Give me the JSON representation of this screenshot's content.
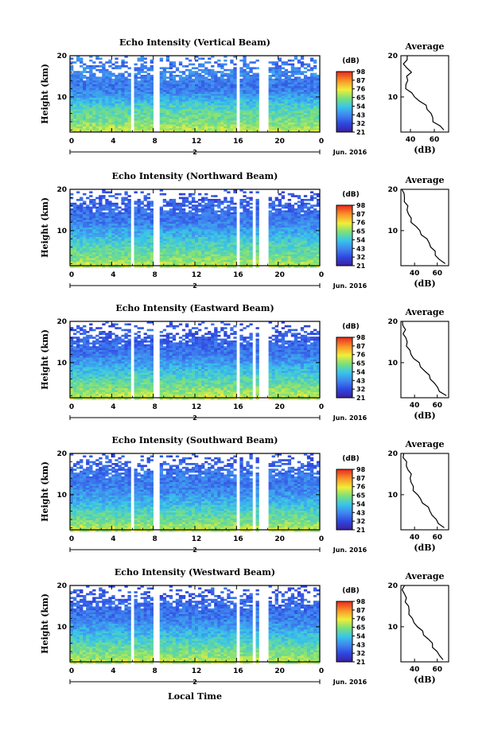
{
  "figure": {
    "xlabel_bottom": "Local Time",
    "date_label": "Jun. 2016",
    "day_marker": "2"
  },
  "chart_data": [
    {
      "type": "heatmap",
      "title": "Echo Intensity (Vertical Beam)",
      "ylabel": "Height (km)",
      "x_ticks": [
        "0",
        "4",
        "8",
        "12",
        "16",
        "20",
        "0"
      ],
      "y_ticks": [
        "10",
        "20"
      ],
      "xlim": [
        0,
        24
      ],
      "ylim": [
        1.5,
        20
      ],
      "colorbar": {
        "unit": "(dB)",
        "ticks": [
          "21",
          "32",
          "43",
          "54",
          "65",
          "76",
          "87",
          "98"
        ]
      },
      "gaps_hours": [
        [
          5.8,
          6.1
        ],
        [
          7.9,
          8.5
        ],
        [
          16.0,
          16.2
        ],
        [
          18.3,
          19.2
        ]
      ],
      "average_profile": {
        "title": "Average",
        "xlabel": "(dB)",
        "x_ticks": [
          "40",
          "60"
        ],
        "y_ticks": [
          "10",
          "20"
        ],
        "xlim": [
          32,
          72
        ],
        "ylim": [
          1.5,
          20
        ],
        "height": [
          2,
          3,
          4,
          5,
          6,
          7,
          8,
          9,
          10,
          11,
          12,
          13,
          14,
          15,
          16,
          17,
          18,
          19,
          20
        ],
        "db": [
          68,
          64,
          60,
          58,
          57,
          55,
          52,
          48,
          44,
          40,
          37,
          36,
          37,
          38,
          40,
          37,
          35,
          36,
          38
        ]
      }
    },
    {
      "type": "heatmap",
      "title": "Echo Intensity (Northward Beam)",
      "ylabel": "Height (km)",
      "x_ticks": [
        "0",
        "4",
        "8",
        "12",
        "16",
        "20",
        "0"
      ],
      "y_ticks": [
        "10",
        "20"
      ],
      "xlim": [
        0,
        24
      ],
      "ylim": [
        1.5,
        20
      ],
      "colorbar": {
        "unit": "(dB)",
        "ticks": [
          "21",
          "32",
          "43",
          "54",
          "65",
          "76",
          "87",
          "98"
        ]
      },
      "gaps_hours": [
        [
          5.8,
          6.1
        ],
        [
          7.9,
          8.5
        ],
        [
          16.0,
          16.2
        ],
        [
          17.6,
          17.8
        ],
        [
          18.3,
          19.2
        ]
      ],
      "average_profile": {
        "title": "Average",
        "xlabel": "(dB)",
        "x_ticks": [
          "40",
          "60"
        ],
        "y_ticks": [
          "10",
          "20"
        ],
        "xlim": [
          28,
          70
        ],
        "ylim": [
          1.5,
          20
        ],
        "height": [
          2,
          3,
          4,
          5,
          6,
          7,
          8,
          9,
          10,
          11,
          12,
          13,
          14,
          15,
          16,
          17,
          18,
          19,
          20
        ],
        "db": [
          66,
          62,
          59,
          57,
          55,
          53,
          50,
          47,
          44,
          41,
          38,
          36,
          35,
          34,
          33,
          32,
          31,
          30,
          30
        ]
      }
    },
    {
      "type": "heatmap",
      "title": "Echo Intensity (Eastward Beam)",
      "ylabel": "Height (km)",
      "x_ticks": [
        "0",
        "4",
        "8",
        "12",
        "16",
        "20",
        "0"
      ],
      "y_ticks": [
        "10",
        "20"
      ],
      "xlim": [
        0,
        24
      ],
      "ylim": [
        1.5,
        20
      ],
      "colorbar": {
        "unit": "(dB)",
        "ticks": [
          "21",
          "32",
          "43",
          "54",
          "65",
          "76",
          "87",
          "98"
        ]
      },
      "gaps_hours": [
        [
          5.8,
          6.1
        ],
        [
          7.9,
          8.5
        ],
        [
          16.0,
          16.2
        ],
        [
          17.6,
          17.8
        ],
        [
          18.3,
          19.2
        ]
      ],
      "average_profile": {
        "title": "Average",
        "xlabel": "(dB)",
        "x_ticks": [
          "40",
          "60"
        ],
        "y_ticks": [
          "10",
          "20"
        ],
        "xlim": [
          28,
          70
        ],
        "ylim": [
          1.5,
          20
        ],
        "height": [
          2,
          3,
          4,
          5,
          6,
          7,
          8,
          9,
          10,
          11,
          12,
          13,
          14,
          15,
          16,
          17,
          18,
          19,
          20
        ],
        "db": [
          67,
          63,
          60,
          57,
          55,
          52,
          49,
          46,
          43,
          40,
          37,
          35,
          34,
          33,
          32,
          31,
          31,
          30,
          30
        ]
      }
    },
    {
      "type": "heatmap",
      "title": "Echo Intensity (Southward Beam)",
      "ylabel": "Height (km)",
      "x_ticks": [
        "0",
        "4",
        "8",
        "12",
        "16",
        "20",
        "0"
      ],
      "y_ticks": [
        "10",
        "20"
      ],
      "xlim": [
        0,
        24
      ],
      "ylim": [
        1.5,
        20
      ],
      "colorbar": {
        "unit": "(dB)",
        "ticks": [
          "21",
          "32",
          "43",
          "54",
          "65",
          "76",
          "87",
          "98"
        ]
      },
      "gaps_hours": [
        [
          5.8,
          6.1
        ],
        [
          7.9,
          8.5
        ],
        [
          16.0,
          16.2
        ],
        [
          17.6,
          17.8
        ],
        [
          18.3,
          19.2
        ]
      ],
      "average_profile": {
        "title": "Average",
        "xlabel": "(dB)",
        "x_ticks": [
          "40",
          "60"
        ],
        "y_ticks": [
          "10",
          "20"
        ],
        "xlim": [
          28,
          70
        ],
        "ylim": [
          1.5,
          20
        ],
        "height": [
          2,
          3,
          4,
          5,
          6,
          7,
          8,
          9,
          10,
          11,
          12,
          13,
          14,
          15,
          16,
          17,
          18,
          19,
          20
        ],
        "db": [
          66,
          62,
          58,
          56,
          54,
          51,
          48,
          45,
          42,
          40,
          38,
          37,
          37,
          36,
          35,
          33,
          32,
          31,
          30
        ]
      }
    },
    {
      "type": "heatmap",
      "title": "Echo Intensity (Westward Beam)",
      "ylabel": "Height (km)",
      "x_ticks": [
        "0",
        "4",
        "8",
        "12",
        "16",
        "20",
        "0"
      ],
      "y_ticks": [
        "10",
        "20"
      ],
      "xlim": [
        0,
        24
      ],
      "ylim": [
        1.5,
        20
      ],
      "colorbar": {
        "unit": "(dB)",
        "ticks": [
          "21",
          "32",
          "43",
          "54",
          "65",
          "76",
          "87",
          "98"
        ]
      },
      "gaps_hours": [
        [
          5.8,
          6.1
        ],
        [
          7.9,
          8.5
        ],
        [
          16.0,
          16.2
        ],
        [
          17.6,
          17.8
        ],
        [
          18.3,
          19.2
        ]
      ],
      "average_profile": {
        "title": "Average",
        "xlabel": "(dB)",
        "x_ticks": [
          "40",
          "60"
        ],
        "y_ticks": [
          "10",
          "20"
        ],
        "xlim": [
          28,
          70
        ],
        "ylim": [
          1.5,
          20
        ],
        "height": [
          2,
          3,
          4,
          5,
          6,
          7,
          8,
          9,
          10,
          11,
          12,
          13,
          14,
          15,
          16,
          17,
          18,
          19,
          20
        ],
        "db": [
          66,
          62,
          59,
          57,
          55,
          52,
          49,
          46,
          43,
          40,
          37,
          36,
          35,
          34,
          33,
          32,
          31,
          30,
          30
        ]
      }
    }
  ]
}
